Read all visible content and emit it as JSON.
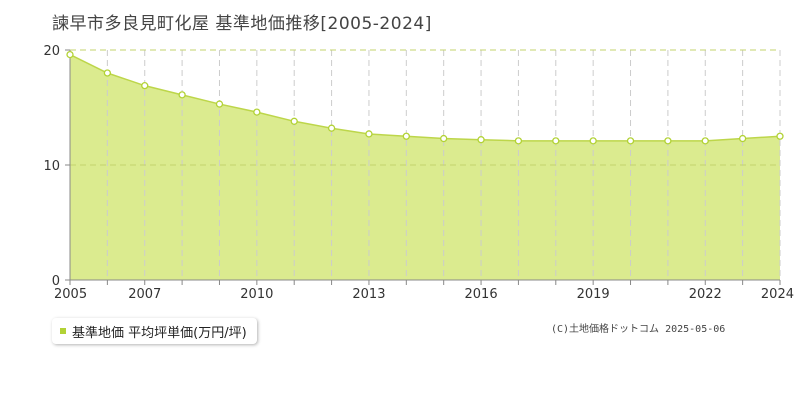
{
  "colors": {
    "area_fill": "#dbeb8f",
    "line": "#bdd64a",
    "marker_fill": "#ffffff",
    "marker_stroke": "#b2d235",
    "grid_vertical": "#cccccc",
    "grid_horizontal": "#c3d36e",
    "axis": "#888888",
    "legend_swatch": "#b2d235"
  },
  "copyright": "(C)土地価格ドットコム 2025-05-06",
  "chart_data": {
    "type": "area",
    "title": "諫早市多良見町化屋 基準地価推移[2005-2024]",
    "xlabel": "",
    "ylabel": "",
    "x": [
      2005,
      2006,
      2007,
      2008,
      2009,
      2010,
      2011,
      2012,
      2013,
      2014,
      2015,
      2016,
      2017,
      2018,
      2019,
      2020,
      2021,
      2022,
      2023,
      2024
    ],
    "series": [
      {
        "name": "基準地価 平均坪単価(万円/坪)",
        "values": [
          19.6,
          18.0,
          16.9,
          16.1,
          15.3,
          14.6,
          13.8,
          13.2,
          12.7,
          12.5,
          12.3,
          12.2,
          12.1,
          12.1,
          12.1,
          12.1,
          12.1,
          12.1,
          12.3,
          12.5
        ]
      }
    ],
    "xlim": [
      2005,
      2024
    ],
    "ylim": [
      0,
      20
    ],
    "x_ticks": [
      "2005",
      "2007",
      "2010",
      "2013",
      "2016",
      "2019",
      "2022",
      "2024"
    ],
    "y_ticks": [
      "0",
      "10",
      "20"
    ],
    "grid": true,
    "legend_position": "bottom-left"
  }
}
